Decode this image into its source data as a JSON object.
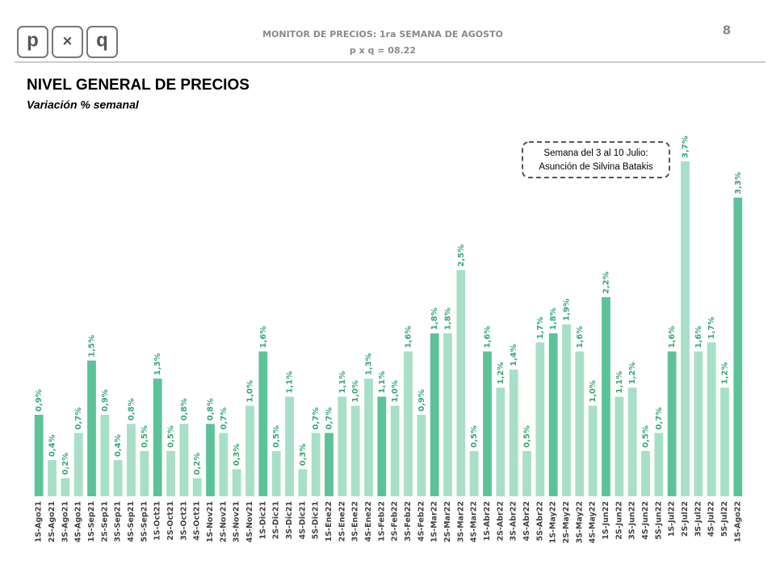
{
  "header": {
    "logo": [
      "p",
      "×",
      "q"
    ],
    "title": "MONITOR DE PRECIOS: 1ra SEMANA DE AGOSTO",
    "subtitle": "p x q = 08.22",
    "page_number": "8"
  },
  "chart_data": {
    "type": "bar",
    "title": "NIVEL GENERAL DE PRECIOS",
    "subtitle": "Variación % semanal",
    "annotation": [
      "Semana del 3 al 10 Julio:",
      "Asunción de Silvina Batakis"
    ],
    "categories": [
      "1S-Ago21",
      "2S-Ago21",
      "3S-Ago21",
      "4S-Ago21",
      "1S-Sep21",
      "2S-Sep21",
      "3S-Sep21",
      "4S-Sep21",
      "5S-Sep21",
      "1S-Oct21",
      "2S-Oct21",
      "3S-Oct21",
      "4S-Oct21",
      "1S-Nov21",
      "2S-Nov21",
      "3S-Nov21",
      "4S-Nov21",
      "1S-Dic21",
      "2S-Dic21",
      "3S-Dic21",
      "4S-Dic21",
      "5S-Dic21",
      "1S-Ene22",
      "2S-Ene22",
      "3S-Ene22",
      "4S-Ene22",
      "1S-Feb22",
      "2S-Feb22",
      "3S-Feb22",
      "4S-Feb22",
      "1S-Mar22",
      "2S-Mar22",
      "3S-Mar22",
      "4S-Mar22",
      "1S-Abr22",
      "2S-Abr22",
      "3S-Abr22",
      "4S-Abr22",
      "5S-Abr22",
      "1S-May22",
      "2S-May22",
      "3S-May22",
      "4S-May22",
      "1S-Jun22",
      "2S-Jun22",
      "3S-Jun22",
      "4S-Jun22",
      "5S-Jun22",
      "1S-Jul22",
      "2S-Jul22",
      "3S-Jul22",
      "4S-Jul22",
      "5S-Jul22",
      "1S-Ago22"
    ],
    "values": [
      0.9,
      0.4,
      0.2,
      0.7,
      1.5,
      0.9,
      0.4,
      0.8,
      0.5,
      1.3,
      0.5,
      0.8,
      0.2,
      0.8,
      0.7,
      0.3,
      1.0,
      1.6,
      0.5,
      1.1,
      0.3,
      0.7,
      0.7,
      1.1,
      1.0,
      1.3,
      1.1,
      1.0,
      1.6,
      0.9,
      1.8,
      1.8,
      2.5,
      0.5,
      1.6,
      1.2,
      1.4,
      0.5,
      1.7,
      1.8,
      1.9,
      1.6,
      1.0,
      2.2,
      1.1,
      1.2,
      0.5,
      0.7,
      1.6,
      3.7,
      1.6,
      1.7,
      1.2,
      3.3
    ],
    "value_labels": [
      "0,9%",
      "0,4%",
      "0,2%",
      "0,7%",
      "1,5%",
      "0,9%",
      "0,4%",
      "0,8%",
      "0,5%",
      "1,3%",
      "0,5%",
      "0,8%",
      "0,2%",
      "0,8%",
      "0,7%",
      "0,3%",
      "1,0%",
      "1,6%",
      "0,5%",
      "1,1%",
      "0,3%",
      "0,7%",
      "0,7%",
      "1,1%",
      "1,0%",
      "1,3%",
      "1,1%",
      "1,0%",
      "1,6%",
      "0,9%",
      "1,8%",
      "1,8%",
      "2,5%",
      "0,5%",
      "1,6%",
      "1,2%",
      "1,4%",
      "0,5%",
      "1,7%",
      "1,8%",
      "1,9%",
      "1,6%",
      "1,0%",
      "2,2%",
      "1,1%",
      "1,2%",
      "0,5%",
      "0,7%",
      "1,6%",
      "3,7%",
      "1,6%",
      "1,7%",
      "1,2%",
      "3,3%"
    ],
    "colors": [
      "#5cc29a",
      "#a8dfc9",
      "#a8dfc9",
      "#a8dfc9",
      "#5cc29a",
      "#a8dfc9",
      "#a8dfc9",
      "#a8dfc9",
      "#a8dfc9",
      "#5cc29a",
      "#a8dfc9",
      "#a8dfc9",
      "#a8dfc9",
      "#5cc29a",
      "#a8dfc9",
      "#a8dfc9",
      "#a8dfc9",
      "#5cc29a",
      "#a8dfc9",
      "#a8dfc9",
      "#a8dfc9",
      "#a8dfc9",
      "#5cc29a",
      "#a8dfc9",
      "#a8dfc9",
      "#a8dfc9",
      "#5cc29a",
      "#a8dfc9",
      "#a8dfc9",
      "#a8dfc9",
      "#5cc29a",
      "#a8dfc9",
      "#a8dfc9",
      "#a8dfc9",
      "#5cc29a",
      "#a8dfc9",
      "#a8dfc9",
      "#a8dfc9",
      "#a8dfc9",
      "#5cc29a",
      "#a8dfc9",
      "#a8dfc9",
      "#a8dfc9",
      "#5cc29a",
      "#a8dfc9",
      "#a8dfc9",
      "#a8dfc9",
      "#a8dfc9",
      "#5cc29a",
      "#a8dfc9",
      "#a8dfc9",
      "#a8dfc9",
      "#a8dfc9",
      "#5cc29a"
    ]
  }
}
